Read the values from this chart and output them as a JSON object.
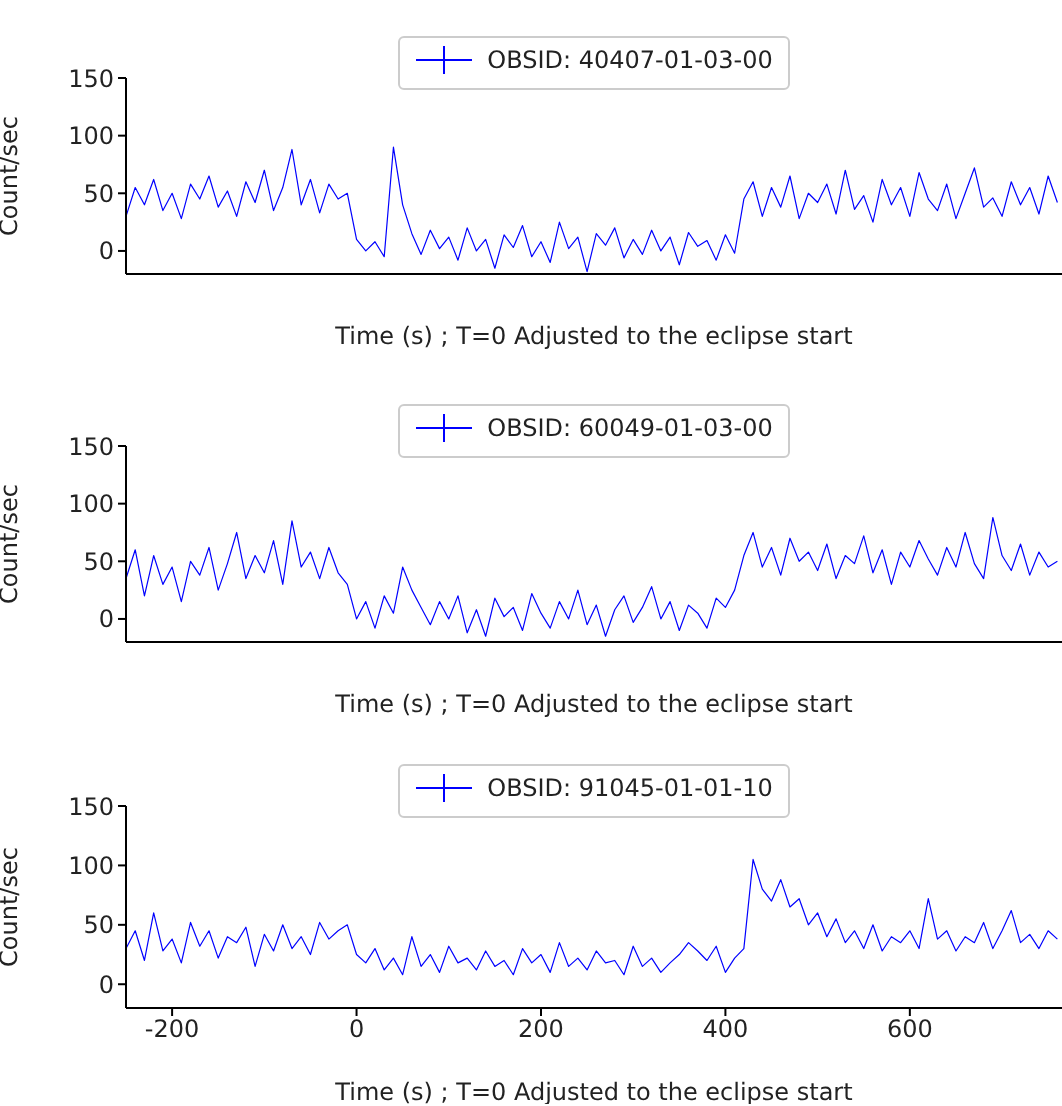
{
  "chart_data": [
    {
      "type": "line",
      "xlabel": "Time (s) ; T=0 Adjusted to the eclipse start",
      "ylabel": "Count/sec",
      "xlim": [
        -250,
        765
      ],
      "ylim": [
        -20,
        150
      ],
      "xticks": [
        -200,
        0,
        200,
        400,
        600
      ],
      "yticks": [
        0,
        50,
        100,
        150
      ],
      "tick_labels": "y",
      "legend": "top",
      "grid": false,
      "x": [
        -250,
        -240,
        -230,
        -220,
        -210,
        -200,
        -190,
        -180,
        -170,
        -160,
        -150,
        -140,
        -130,
        -120,
        -110,
        -100,
        -90,
        -80,
        -70,
        -60,
        -50,
        -40,
        -30,
        -20,
        -10,
        0,
        10,
        20,
        30,
        40,
        50,
        60,
        70,
        80,
        90,
        100,
        110,
        120,
        130,
        140,
        150,
        160,
        170,
        180,
        190,
        200,
        210,
        220,
        230,
        240,
        250,
        260,
        270,
        280,
        290,
        300,
        310,
        320,
        330,
        340,
        350,
        360,
        370,
        380,
        390,
        400,
        410,
        420,
        430,
        440,
        450,
        460,
        470,
        480,
        490,
        500,
        510,
        520,
        530,
        540,
        550,
        560,
        570,
        580,
        590,
        600,
        610,
        620,
        630,
        640,
        650,
        660,
        670,
        680,
        690,
        700,
        710,
        720,
        730,
        740,
        750,
        760
      ],
      "series": [
        {
          "name": "OBSID: 40407-01-03-00",
          "color": "#0000ff",
          "values": [
            30,
            55,
            40,
            62,
            35,
            50,
            28,
            58,
            45,
            65,
            38,
            52,
            30,
            60,
            42,
            70,
            35,
            55,
            88,
            40,
            62,
            33,
            58,
            45,
            50,
            10,
            0,
            8,
            -5,
            90,
            40,
            15,
            -3,
            18,
            2,
            12,
            -8,
            20,
            0,
            10,
            -15,
            14,
            3,
            22,
            -5,
            8,
            -10,
            25,
            2,
            12,
            -18,
            15,
            5,
            20,
            -6,
            10,
            -3,
            18,
            0,
            12,
            -12,
            16,
            4,
            9,
            -8,
            14,
            -2,
            45,
            60,
            30,
            55,
            38,
            65,
            28,
            50,
            42,
            58,
            32,
            70,
            36,
            48,
            25,
            62,
            40,
            55,
            30,
            68,
            45,
            35,
            58,
            28,
            50,
            72,
            38,
            46,
            30,
            60,
            40,
            55,
            32,
            65,
            42
          ]
        }
      ]
    },
    {
      "type": "line",
      "xlabel": "Time (s) ; T=0 Adjusted to the eclipse start",
      "ylabel": "Count/sec",
      "xlim": [
        -250,
        765
      ],
      "ylim": [
        -20,
        150
      ],
      "xticks": [
        -200,
        0,
        200,
        400,
        600
      ],
      "yticks": [
        0,
        50,
        100,
        150
      ],
      "tick_labels": "y",
      "legend": "top",
      "grid": false,
      "x": [
        -250,
        -240,
        -230,
        -220,
        -210,
        -200,
        -190,
        -180,
        -170,
        -160,
        -150,
        -140,
        -130,
        -120,
        -110,
        -100,
        -90,
        -80,
        -70,
        -60,
        -50,
        -40,
        -30,
        -20,
        -10,
        0,
        10,
        20,
        30,
        40,
        50,
        60,
        70,
        80,
        90,
        100,
        110,
        120,
        130,
        140,
        150,
        160,
        170,
        180,
        190,
        200,
        210,
        220,
        230,
        240,
        250,
        260,
        270,
        280,
        290,
        300,
        310,
        320,
        330,
        340,
        350,
        360,
        370,
        380,
        390,
        400,
        410,
        420,
        430,
        440,
        450,
        460,
        470,
        480,
        490,
        500,
        510,
        520,
        530,
        540,
        550,
        560,
        570,
        580,
        590,
        600,
        610,
        620,
        630,
        640,
        650,
        660,
        670,
        680,
        690,
        700,
        710,
        720,
        730,
        740,
        750,
        760
      ],
      "series": [
        {
          "name": "OBSID: 60049-01-03-00",
          "color": "#0000ff",
          "values": [
            35,
            60,
            20,
            55,
            30,
            45,
            15,
            50,
            38,
            62,
            25,
            48,
            75,
            35,
            55,
            40,
            68,
            30,
            85,
            45,
            58,
            35,
            62,
            40,
            30,
            0,
            15,
            -8,
            20,
            5,
            45,
            25,
            10,
            -5,
            15,
            0,
            20,
            -12,
            8,
            -15,
            18,
            2,
            10,
            -10,
            22,
            5,
            -8,
            15,
            0,
            25,
            -5,
            12,
            -15,
            8,
            20,
            -3,
            10,
            28,
            0,
            15,
            -10,
            12,
            5,
            -8,
            18,
            10,
            25,
            55,
            75,
            45,
            62,
            38,
            70,
            50,
            58,
            42,
            65,
            35,
            55,
            48,
            72,
            40,
            60,
            30,
            58,
            45,
            68,
            52,
            38,
            62,
            45,
            75,
            48,
            35,
            88,
            55,
            42,
            65,
            38,
            58,
            45,
            50
          ]
        }
      ]
    },
    {
      "type": "line",
      "xlabel": "Time (s) ; T=0 Adjusted to the eclipse start",
      "ylabel": "Count/sec",
      "xlim": [
        -250,
        765
      ],
      "ylim": [
        -20,
        150
      ],
      "xticks": [
        -200,
        0,
        200,
        400,
        600
      ],
      "yticks": [
        0,
        50,
        100,
        150
      ],
      "legend": "top",
      "grid": false,
      "x": [
        -250,
        -240,
        -230,
        -220,
        -210,
        -200,
        -190,
        -180,
        -170,
        -160,
        -150,
        -140,
        -130,
        -120,
        -110,
        -100,
        -90,
        -80,
        -70,
        -60,
        -50,
        -40,
        -30,
        -20,
        -10,
        0,
        10,
        20,
        30,
        40,
        50,
        60,
        70,
        80,
        90,
        100,
        110,
        120,
        130,
        140,
        150,
        160,
        170,
        180,
        190,
        200,
        210,
        220,
        230,
        240,
        250,
        260,
        270,
        280,
        290,
        300,
        310,
        320,
        330,
        340,
        350,
        360,
        370,
        380,
        390,
        400,
        410,
        420,
        430,
        440,
        450,
        460,
        470,
        480,
        490,
        500,
        510,
        520,
        530,
        540,
        550,
        560,
        570,
        580,
        590,
        600,
        610,
        620,
        630,
        640,
        650,
        660,
        670,
        680,
        690,
        700,
        710,
        720,
        730,
        740,
        750,
        760
      ],
      "series": [
        {
          "name": "OBSID: 91045-01-01-10",
          "color": "#0000ff",
          "values": [
            30,
            45,
            20,
            60,
            28,
            38,
            18,
            52,
            32,
            45,
            22,
            40,
            35,
            48,
            15,
            42,
            28,
            50,
            30,
            40,
            25,
            52,
            38,
            45,
            50,
            25,
            18,
            30,
            12,
            22,
            8,
            40,
            15,
            25,
            10,
            32,
            18,
            22,
            12,
            28,
            15,
            20,
            8,
            30,
            18,
            25,
            10,
            35,
            15,
            22,
            12,
            28,
            18,
            20,
            8,
            32,
            15,
            22,
            10,
            18,
            25,
            35,
            28,
            20,
            32,
            10,
            22,
            30,
            105,
            80,
            70,
            88,
            65,
            72,
            50,
            60,
            40,
            55,
            35,
            45,
            30,
            50,
            28,
            40,
            35,
            45,
            30,
            72,
            38,
            45,
            28,
            40,
            35,
            52,
            30,
            45,
            62,
            35,
            42,
            30,
            45,
            38
          ]
        }
      ]
    }
  ]
}
